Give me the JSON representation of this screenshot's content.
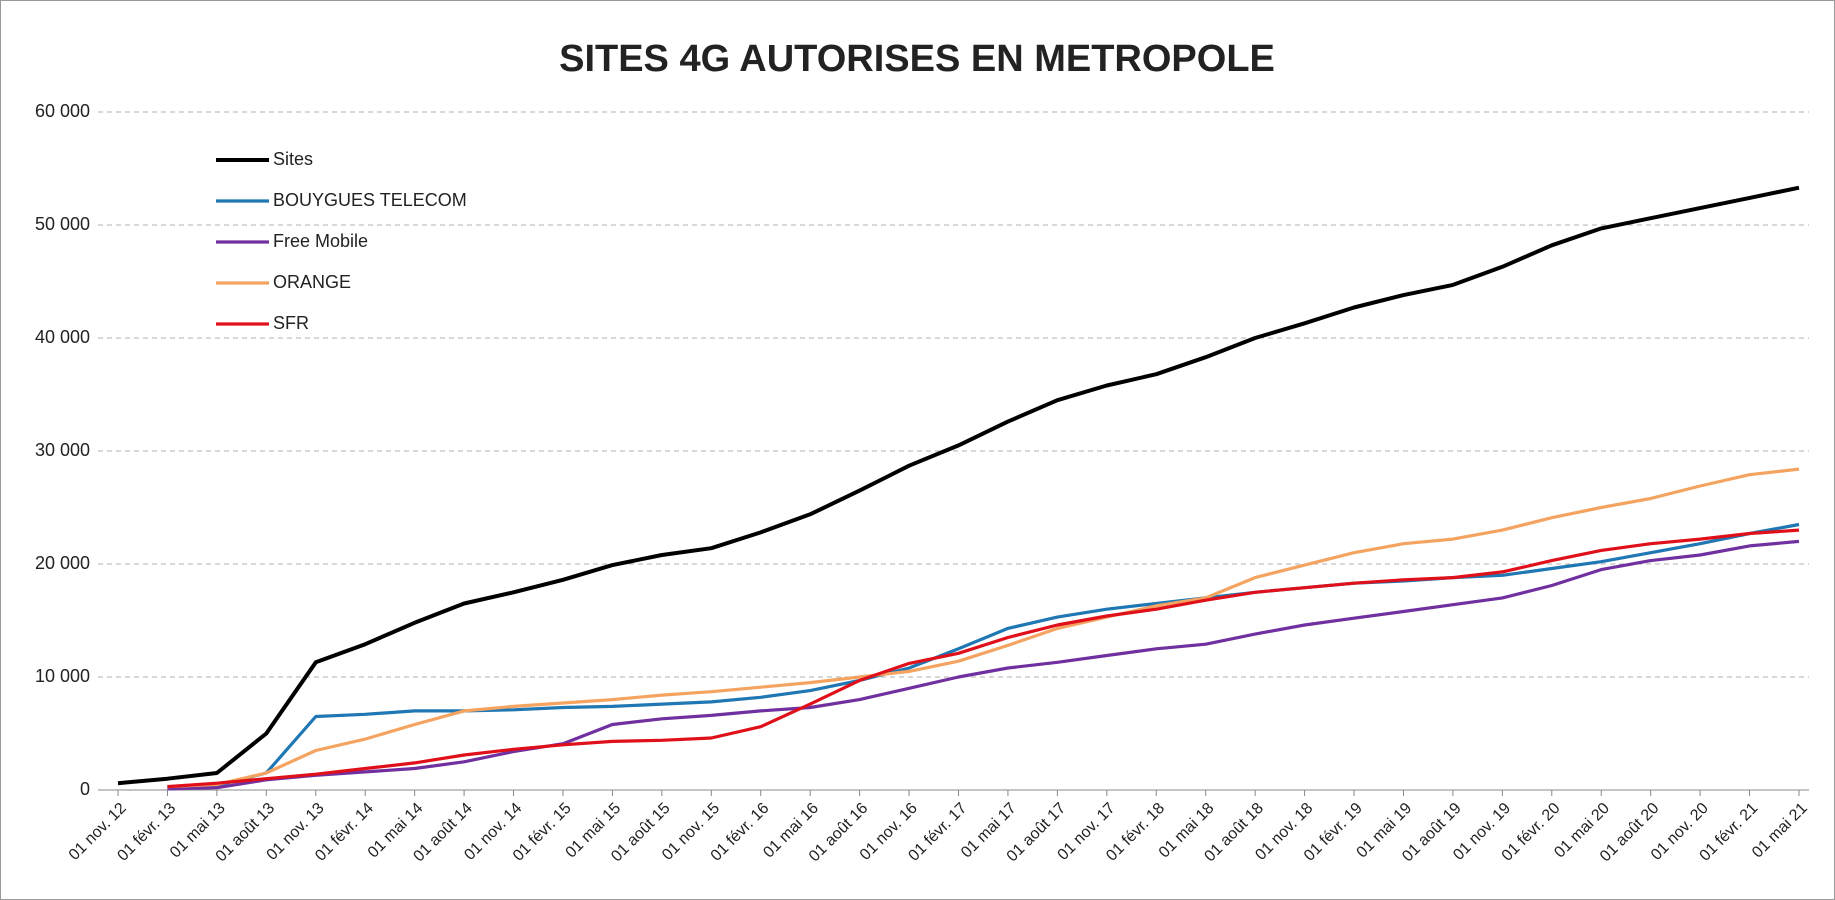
{
  "chart_data": {
    "type": "line",
    "title": "SITES 4G AUTORISES EN METROPOLE",
    "categories": [
      "01 nov. 12",
      "01 févr. 13",
      "01 mai 13",
      "01 août 13",
      "01 nov. 13",
      "01 févr. 14",
      "01 mai 14",
      "01 août 14",
      "01 nov. 14",
      "01 févr. 15",
      "01 mai 15",
      "01 août 15",
      "01 nov. 15",
      "01 févr. 16",
      "01 mai 16",
      "01 août 16",
      "01 nov. 16",
      "01 févr. 17",
      "01 mai 17",
      "01 août 17",
      "01 nov. 17",
      "01 févr. 18",
      "01 mai 18",
      "01 août 18",
      "01 nov. 18",
      "01 févr. 19",
      "01 mai 19",
      "01 août 19",
      "01 nov. 19",
      "01 févr. 20",
      "01 mai 20",
      "01 août 20",
      "01 nov. 20",
      "01 févr. 21",
      "01 mai 21"
    ],
    "series": [
      {
        "name": "Sites",
        "color": "#000000",
        "values": [
          600,
          1000,
          1500,
          5000,
          11300,
          12900,
          14800,
          16500,
          17500,
          18600,
          19900,
          20800,
          21400,
          22800,
          24400,
          26500,
          28700,
          30500,
          32600,
          34500,
          35800,
          36800,
          38300,
          40000,
          41300,
          42700,
          43800,
          44700,
          46300,
          48200,
          49700,
          50600,
          51500,
          52400,
          53300
        ]
      },
      {
        "name": "BOUYGUES TELECOM",
        "color": "#1f77b4",
        "values": [
          null,
          200,
          400,
          1500,
          6500,
          6700,
          7000,
          7000,
          7100,
          7300,
          7400,
          7600,
          7800,
          8200,
          8800,
          9700,
          10800,
          12500,
          14300,
          15300,
          16000,
          16500,
          17000,
          17500,
          17900,
          18300,
          18500,
          18800,
          19000,
          19600,
          20200,
          21000,
          21800,
          22700,
          23500
        ]
      },
      {
        "name": "Free Mobile",
        "color": "#7030a0",
        "values": [
          null,
          100,
          200,
          900,
          1300,
          1600,
          1900,
          2500,
          3400,
          4100,
          5800,
          6300,
          6600,
          7000,
          7300,
          8000,
          9000,
          10000,
          10800,
          11300,
          11900,
          12500,
          12900,
          13800,
          14600,
          15200,
          15800,
          16400,
          17000,
          18100,
          19500,
          20300,
          20800,
          21600,
          22000
        ]
      },
      {
        "name": "ORANGE",
        "color": "#f4a460",
        "values": [
          null,
          300,
          500,
          1500,
          3500,
          4500,
          5800,
          7000,
          7400,
          7700,
          8000,
          8400,
          8700,
          9100,
          9500,
          10000,
          10500,
          11400,
          12800,
          14300,
          15300,
          16300,
          17000,
          18800,
          19900,
          21000,
          21800,
          22200,
          23000,
          24100,
          25000,
          25800,
          26900,
          27900,
          28400
        ]
      },
      {
        "name": "SFR",
        "color": "#e0101a",
        "values": [
          null,
          300,
          600,
          1000,
          1400,
          1900,
          2400,
          3100,
          3600,
          4000,
          4300,
          4400,
          4600,
          5600,
          7600,
          9700,
          11200,
          12100,
          13500,
          14600,
          15400,
          16000,
          16800,
          17500,
          17900,
          18300,
          18600,
          18800,
          19300,
          20300,
          21200,
          21800,
          22200,
          22700,
          23000
        ]
      }
    ],
    "ylim": [
      0,
      60000
    ],
    "yticks": [
      0,
      {
        "value": 10000,
        "label": "10 000"
      },
      {
        "value": 20000,
        "label": "20 000"
      },
      {
        "value": 30000,
        "label": "30 000"
      },
      {
        "value": 40000,
        "label": "40 000"
      },
      {
        "value": 50000,
        "label": "50 000"
      },
      {
        "value": 60000,
        "label": "60 000"
      }
    ],
    "grid": true,
    "legend": "top-left"
  }
}
